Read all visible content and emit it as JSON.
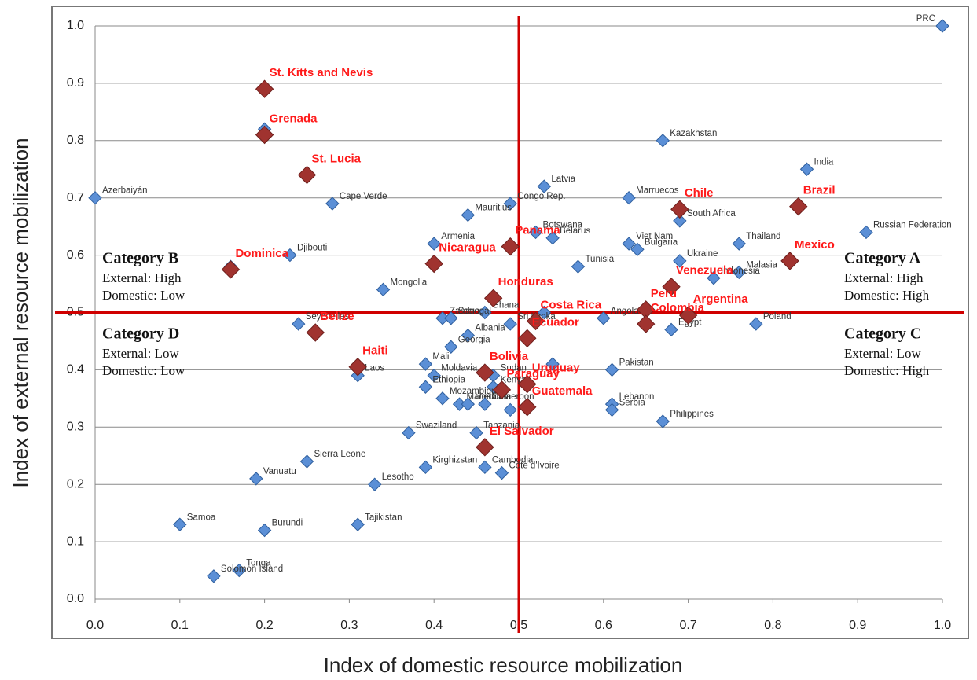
{
  "chart_data": {
    "type": "scatter",
    "x_label": "Index of domestic resource mobilization",
    "y_label": "Index of external resource mobilization",
    "xlim": [
      0,
      1
    ],
    "ylim": [
      0,
      1
    ],
    "xticks": [
      {
        "value": 0,
        "label": "0.0"
      },
      0.1,
      0.2,
      0.3,
      0.4,
      0.5,
      0.6,
      0.7,
      0.8,
      0.9,
      {
        "value": 1,
        "label": "1.0"
      }
    ],
    "yticks": [
      {
        "value": 0,
        "label": "0.0"
      },
      0.1,
      0.2,
      0.3,
      0.4,
      0.5,
      0.6,
      0.7,
      0.8,
      0.9,
      {
        "value": 1,
        "label": "1.0"
      }
    ],
    "grid": true,
    "quadrant_lines": {
      "x": 0.5,
      "y": 0.5,
      "color": "#d00000"
    },
    "annotations": [
      {
        "title": "Category B",
        "lines": [
          "External: High",
          "Domestic: Low"
        ],
        "corner": "upper-left"
      },
      {
        "title": "Category A",
        "lines": [
          "External: High",
          "Domestic: High"
        ],
        "corner": "upper-right"
      },
      {
        "title": "Category D",
        "lines": [
          "External: Low",
          "Domestic: Low"
        ],
        "corner": "lower-left"
      },
      {
        "title": "Category C",
        "lines": [
          "External: Low",
          "Domestic: High"
        ],
        "corner": "lower-right"
      }
    ],
    "series": [
      {
        "color": "#5b8fd6",
        "size": "small",
        "labels": [
          "PRC",
          "Kazakhstan",
          "India",
          "Latvia",
          "Marruecos",
          "Congo Rep.",
          "Azerbaiyán",
          "Cape Verde",
          "Mauritius",
          "Botswana",
          "Belarus",
          "South Africa",
          "Russian Federation",
          "Bulgaria",
          "Viet Nam",
          "Thailand",
          "Armenia",
          "Djibouti",
          "Ukraine",
          "Tunisia",
          null,
          "Malasia",
          "Indonesia",
          "Mongolia",
          "Ghana",
          null,
          "Angola",
          "Seychelles",
          "Zambia",
          "Senegal",
          "Sri Lanka",
          "Albania",
          "Georgia",
          "Egypt",
          "Poland",
          "Pakistan",
          "Mali",
          "Moldavia",
          null,
          "Sudan",
          "Laos",
          "Ethiopia",
          "Kenya",
          "Mozambique",
          "Macedonia",
          "Uganda",
          "Lebanon",
          "Serbia",
          "Cameroon",
          "Philippines",
          "Swaziland",
          "Tanzania",
          null,
          "Sierra Leone",
          "Kirghizstan",
          "Cambodia",
          "Cote d'Ivoire",
          "Vanuatu",
          "Lesotho",
          "Samoa",
          "Tajikistan",
          "Burundi",
          "Tonga",
          "Solomon Island",
          null
        ],
        "x": [
          1.0,
          0.67,
          0.84,
          0.53,
          0.63,
          0.49,
          0.0,
          0.28,
          0.44,
          0.52,
          0.54,
          0.69,
          0.91,
          0.64,
          0.63,
          0.76,
          0.4,
          0.23,
          0.69,
          0.57,
          0.16,
          0.76,
          0.73,
          0.34,
          0.46,
          0.53,
          0.6,
          0.24,
          0.41,
          0.42,
          0.49,
          0.44,
          0.42,
          0.68,
          0.78,
          0.61,
          0.39,
          0.4,
          0.54,
          0.47,
          0.31,
          0.39,
          0.47,
          0.41,
          0.43,
          0.44,
          0.61,
          0.61,
          0.46,
          0.67,
          0.37,
          0.45,
          0.49,
          0.25,
          0.39,
          0.46,
          0.48,
          0.19,
          0.33,
          0.1,
          0.31,
          0.2,
          0.17,
          0.14,
          0.2
        ],
        "y": [
          1.0,
          0.8,
          0.75,
          0.72,
          0.7,
          0.69,
          0.7,
          0.69,
          0.67,
          0.64,
          0.63,
          0.66,
          0.64,
          0.61,
          0.62,
          0.62,
          0.62,
          0.6,
          0.59,
          0.58,
          0.58,
          0.57,
          0.56,
          0.54,
          0.5,
          0.5,
          0.49,
          0.48,
          0.49,
          0.49,
          0.48,
          0.46,
          0.44,
          0.47,
          0.48,
          0.4,
          0.41,
          0.39,
          0.41,
          0.39,
          0.39,
          0.37,
          0.37,
          0.35,
          0.34,
          0.34,
          0.34,
          0.33,
          0.34,
          0.31,
          0.29,
          0.29,
          0.33,
          0.24,
          0.23,
          0.23,
          0.22,
          0.21,
          0.2,
          0.13,
          0.13,
          0.12,
          0.05,
          0.04,
          0.82
        ]
      },
      {
        "color": "#a0332f",
        "size": "large",
        "label_color": "#ff1a1a",
        "labels": [
          "St. Kitts and Nevis",
          "Grenada",
          "St. Lucia",
          "Chile",
          "Brazil",
          "Panama",
          "Nicaragua",
          "Mexico",
          "Dominica",
          "Venezuela",
          "Honduras",
          "Peru",
          "Argentina",
          "Costa Rica",
          "Colombia",
          "Belize",
          "Ecuador",
          "Haiti",
          "Bolivia",
          "Uruguay",
          "Paraguay",
          "Guatemala",
          "El Salvador"
        ],
        "x": [
          0.2,
          0.2,
          0.25,
          0.69,
          0.83,
          0.49,
          0.4,
          0.82,
          0.16,
          0.68,
          0.47,
          0.65,
          0.7,
          0.52,
          0.65,
          0.26,
          0.51,
          0.31,
          0.46,
          0.51,
          0.48,
          0.51,
          0.46
        ],
        "y": [
          0.89,
          0.81,
          0.74,
          0.68,
          0.685,
          0.615,
          0.585,
          0.59,
          0.575,
          0.545,
          0.525,
          0.505,
          0.495,
          0.485,
          0.48,
          0.465,
          0.455,
          0.405,
          0.395,
          0.375,
          0.365,
          0.335,
          0.265
        ]
      }
    ]
  }
}
